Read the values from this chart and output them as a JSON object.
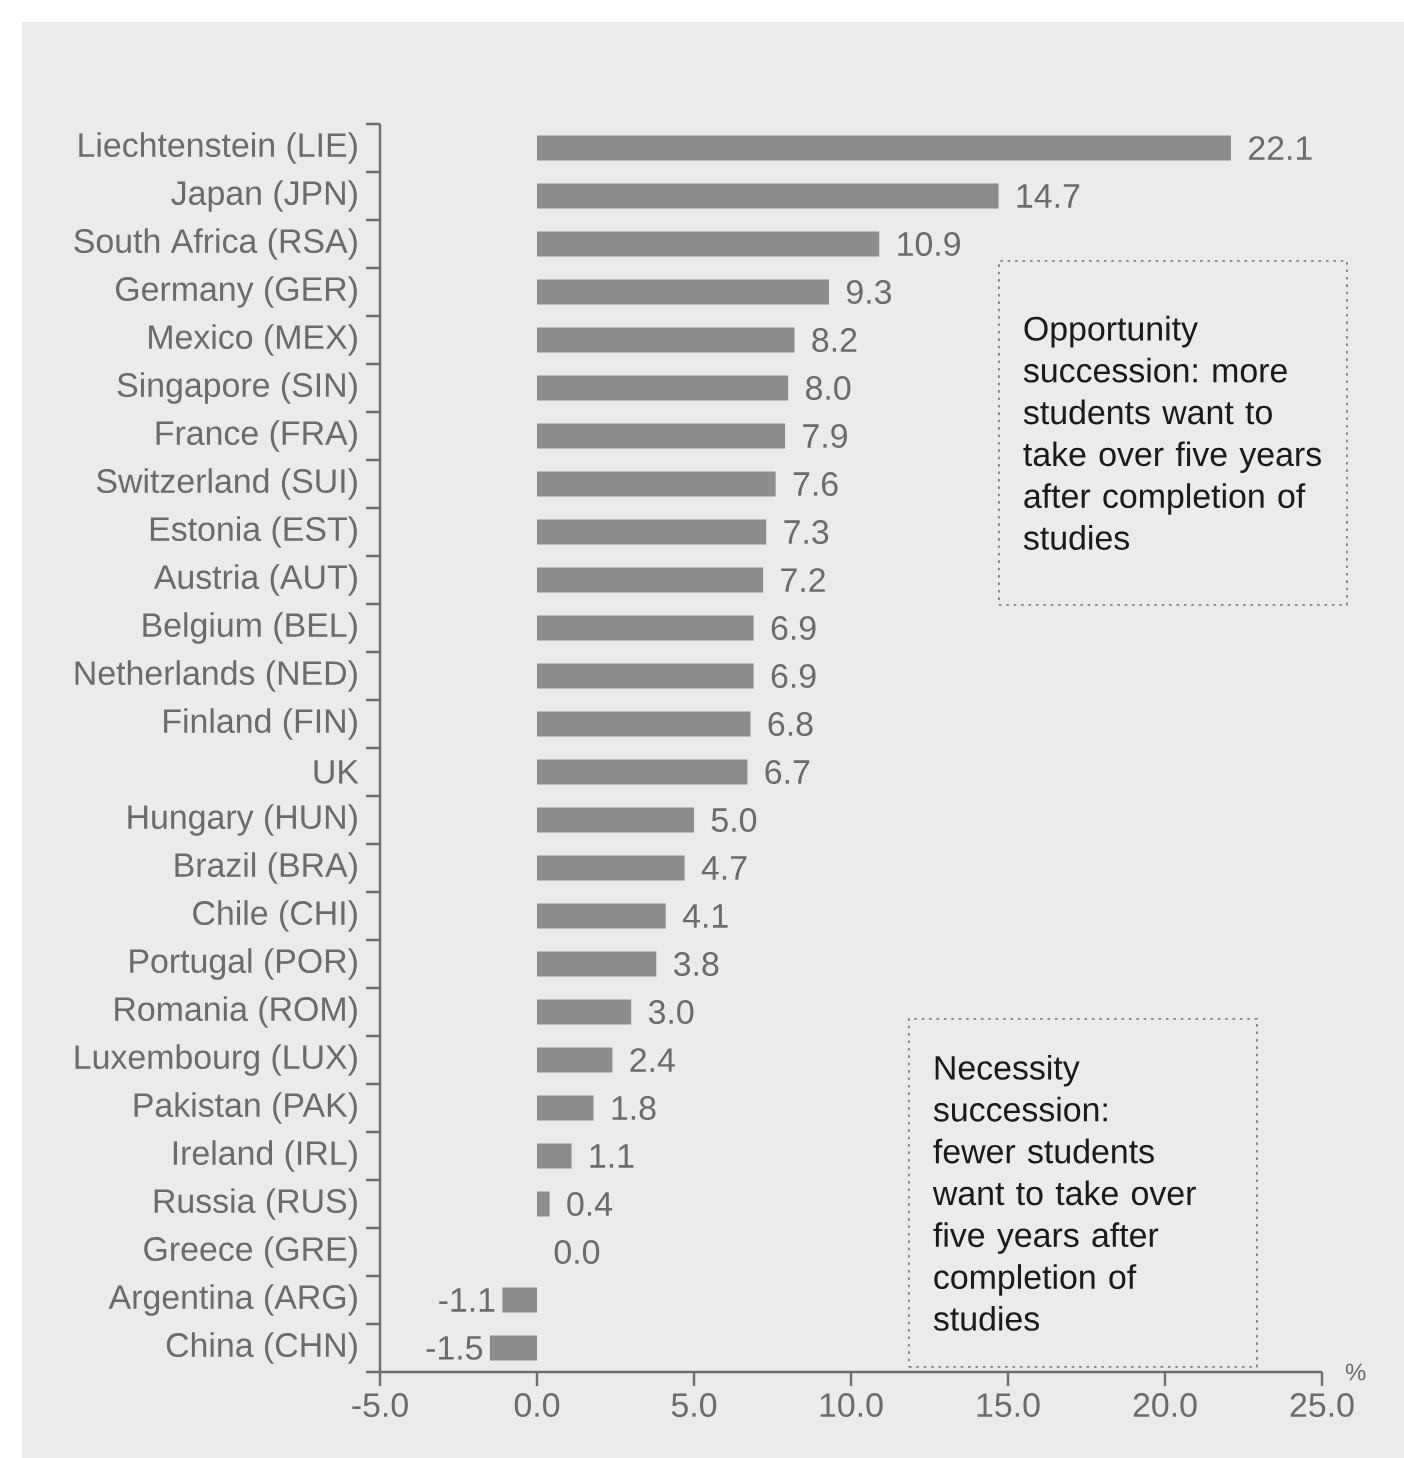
{
  "chart_data": {
    "type": "bar",
    "orientation": "horizontal",
    "categories": [
      "Liechtenstein (LIE)",
      "Japan (JPN)",
      "South Africa (RSA)",
      "Germany (GER)",
      "Mexico (MEX)",
      "Singapore (SIN)",
      "France (FRA)",
      "Switzerland (SUI)",
      "Estonia (EST)",
      "Austria (AUT)",
      "Belgium (BEL)",
      "Netherlands (NED)",
      "Finland (FIN)",
      "UK",
      "Hungary (HUN)",
      "Brazil (BRA)",
      "Chile (CHI)",
      "Portugal (POR)",
      "Romania (ROM)",
      "Luxembourg (LUX)",
      "Pakistan (PAK)",
      "Ireland (IRL)",
      "Russia (RUS)",
      "Greece (GRE)",
      "Argentina (ARG)",
      "China (CHN)"
    ],
    "values": [
      22.1,
      14.7,
      10.9,
      9.3,
      8.2,
      8.0,
      7.9,
      7.6,
      7.3,
      7.2,
      6.9,
      6.9,
      6.8,
      6.7,
      5.0,
      4.7,
      4.1,
      3.8,
      3.0,
      2.4,
      1.8,
      1.1,
      0.4,
      0.0,
      -1.1,
      -1.5
    ],
    "value_labels": [
      "22.1",
      "14.7",
      "10.9",
      "9.3",
      "8.2",
      "8.0",
      "7.9",
      "7.6",
      "7.3",
      "7.2",
      "6.9",
      "6.9",
      "6.8",
      "6.7",
      "5.0",
      "4.7",
      "4.1",
      "3.8",
      "3.0",
      "2.4",
      "1.8",
      "1.1",
      "0.4",
      "0.0",
      "-1.1",
      "-1.5"
    ],
    "color": "#8c8c8c",
    "xlabel": "%",
    "xlim": [
      -5,
      25
    ],
    "xticks": [
      {
        "value": -5,
        "label": "-5.0"
      },
      {
        "value": 0,
        "label": "0.0"
      },
      {
        "value": 5,
        "label": "5.0"
      },
      {
        "value": 10,
        "label": "10.0"
      },
      {
        "value": 15,
        "label": "15.0"
      },
      {
        "value": 20,
        "label": "20.0"
      },
      {
        "value": 25,
        "label": "25.0"
      }
    ],
    "annotations": [
      "Opportunity succession: more students want to take over five years after completion of studies",
      "Necessity succession: fewer students want to take over five years after completion of studies"
    ]
  }
}
